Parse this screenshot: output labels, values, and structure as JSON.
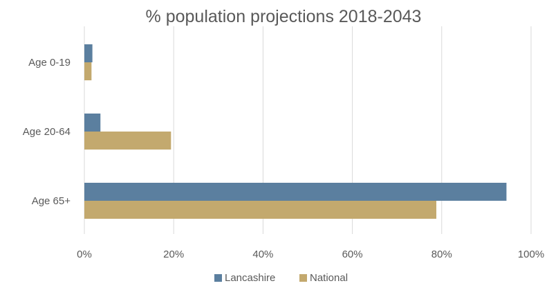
{
  "chart_data": {
    "type": "bar",
    "orientation": "horizontal",
    "title": "% population projections 2018-2043",
    "xlabel": "",
    "ylabel": "",
    "categories": [
      "Age 0-19",
      "Age 20-64",
      "Age 65+"
    ],
    "series": [
      {
        "name": "Lancashire",
        "color": "#5b7f9f",
        "values": [
          1.8,
          3.6,
          94.5
        ]
      },
      {
        "name": "National",
        "color": "#c3a96e",
        "values": [
          1.6,
          19.4,
          78.8
        ]
      }
    ],
    "xlim": [
      0,
      100
    ],
    "x_ticks": [
      "0%",
      "20%",
      "40%",
      "60%",
      "80%",
      "100%"
    ],
    "grid": true,
    "legend_position": "bottom"
  }
}
